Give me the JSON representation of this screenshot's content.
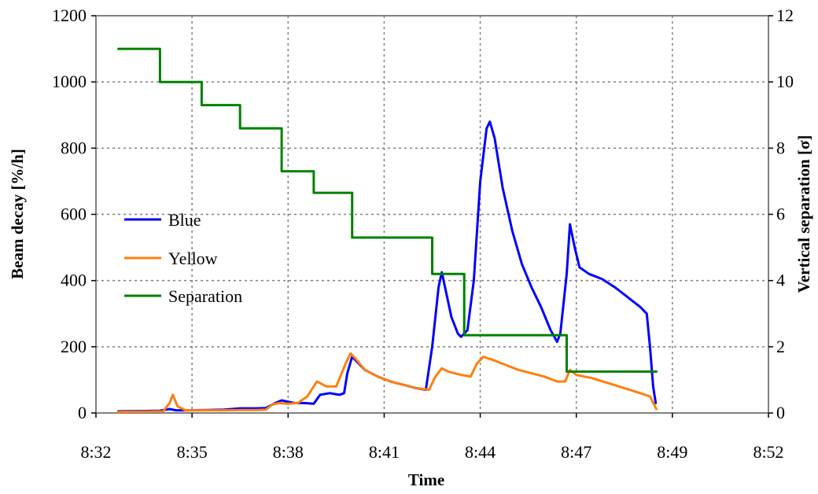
{
  "chart_data": {
    "type": "line",
    "title": "",
    "xlabel": "Time",
    "ylabel_left": "Beam decay [%/h]",
    "ylabel_right": "Vertical separation [σ]",
    "x_ticks": [
      "8:32",
      "8:35",
      "8:38",
      "8:41",
      "8:44",
      "8:47",
      "8:49",
      "8:52"
    ],
    "y_left_ticks": [
      "0",
      "200",
      "400",
      "600",
      "800",
      "1000",
      "1200"
    ],
    "y_right_ticks": [
      "0",
      "2",
      "4",
      "6",
      "8",
      "10",
      "12"
    ],
    "ylim_left": [
      0,
      1200
    ],
    "ylim_right": [
      0,
      12
    ],
    "grid": true,
    "grid_style": "dotted",
    "legend_position": "center-left",
    "series": [
      {
        "name": "Blue",
        "color": "#0000ff",
        "axis": "left",
        "points": [
          [
            0.7,
            5
          ],
          [
            1.5,
            6
          ],
          [
            2.0,
            7
          ],
          [
            2.3,
            12
          ],
          [
            2.5,
            8
          ],
          [
            3.0,
            8
          ],
          [
            3.5,
            9
          ],
          [
            4.0,
            10
          ],
          [
            4.5,
            14
          ],
          [
            5.0,
            14
          ],
          [
            5.3,
            15
          ],
          [
            5.6,
            30
          ],
          [
            5.8,
            38
          ],
          [
            6.2,
            30
          ],
          [
            6.5,
            30
          ],
          [
            6.8,
            28
          ],
          [
            7.0,
            55
          ],
          [
            7.3,
            60
          ],
          [
            7.6,
            55
          ],
          [
            7.75,
            60
          ],
          [
            7.85,
            120
          ],
          [
            8.0,
            170
          ],
          [
            8.4,
            130
          ],
          [
            8.8,
            110
          ],
          [
            9.2,
            95
          ],
          [
            9.6,
            85
          ],
          [
            10.0,
            75
          ],
          [
            10.3,
            70
          ],
          [
            10.5,
            200
          ],
          [
            10.7,
            380
          ],
          [
            10.8,
            425
          ],
          [
            10.9,
            380
          ],
          [
            11.1,
            290
          ],
          [
            11.3,
            240
          ],
          [
            11.4,
            230
          ],
          [
            11.6,
            250
          ],
          [
            11.8,
            400
          ],
          [
            12.0,
            700
          ],
          [
            12.2,
            860
          ],
          [
            12.3,
            880
          ],
          [
            12.45,
            830
          ],
          [
            12.7,
            680
          ],
          [
            13.0,
            550
          ],
          [
            13.3,
            450
          ],
          [
            13.6,
            380
          ],
          [
            13.9,
            320
          ],
          [
            14.2,
            250
          ],
          [
            14.4,
            215
          ],
          [
            14.5,
            240
          ],
          [
            14.7,
            420
          ],
          [
            14.8,
            570
          ],
          [
            14.95,
            500
          ],
          [
            15.1,
            440
          ],
          [
            15.4,
            420
          ],
          [
            15.8,
            405
          ],
          [
            16.2,
            380
          ],
          [
            16.6,
            350
          ],
          [
            17.0,
            320
          ],
          [
            17.2,
            300
          ],
          [
            17.3,
            200
          ],
          [
            17.4,
            80
          ],
          [
            17.48,
            30
          ]
        ]
      },
      {
        "name": "Yellow",
        "color": "#ff7f0e",
        "axis": "left",
        "points": [
          [
            0.7,
            3
          ],
          [
            1.5,
            4
          ],
          [
            2.1,
            5
          ],
          [
            2.3,
            30
          ],
          [
            2.4,
            55
          ],
          [
            2.55,
            20
          ],
          [
            2.8,
            8
          ],
          [
            3.5,
            8
          ],
          [
            4.0,
            8
          ],
          [
            4.5,
            9
          ],
          [
            5.0,
            9
          ],
          [
            5.3,
            10
          ],
          [
            5.5,
            25
          ],
          [
            5.7,
            30
          ],
          [
            6.0,
            28
          ],
          [
            6.3,
            30
          ],
          [
            6.6,
            50
          ],
          [
            6.9,
            95
          ],
          [
            7.2,
            80
          ],
          [
            7.5,
            80
          ],
          [
            7.8,
            150
          ],
          [
            7.95,
            180
          ],
          [
            8.1,
            165
          ],
          [
            8.4,
            130
          ],
          [
            8.8,
            110
          ],
          [
            9.2,
            95
          ],
          [
            9.6,
            85
          ],
          [
            10.0,
            75
          ],
          [
            10.4,
            70
          ],
          [
            10.6,
            110
          ],
          [
            10.8,
            135
          ],
          [
            11.0,
            125
          ],
          [
            11.4,
            115
          ],
          [
            11.7,
            110
          ],
          [
            11.9,
            150
          ],
          [
            12.1,
            170
          ],
          [
            12.4,
            160
          ],
          [
            12.8,
            145
          ],
          [
            13.2,
            130
          ],
          [
            13.6,
            120
          ],
          [
            14.0,
            110
          ],
          [
            14.4,
            95
          ],
          [
            14.65,
            95
          ],
          [
            14.8,
            130
          ],
          [
            15.0,
            115
          ],
          [
            15.5,
            105
          ],
          [
            16.0,
            90
          ],
          [
            16.5,
            75
          ],
          [
            17.0,
            60
          ],
          [
            17.3,
            50
          ],
          [
            17.5,
            12
          ]
        ]
      },
      {
        "name": "Separation",
        "color": "#008000",
        "axis": "right",
        "type": "step",
        "points": [
          [
            0.7,
            11.0
          ],
          [
            2.0,
            11.0
          ],
          [
            2.0,
            10.0
          ],
          [
            3.3,
            10.0
          ],
          [
            3.3,
            9.3
          ],
          [
            4.5,
            9.3
          ],
          [
            4.5,
            8.6
          ],
          [
            5.8,
            8.6
          ],
          [
            5.8,
            7.3
          ],
          [
            6.8,
            7.3
          ],
          [
            6.8,
            6.65
          ],
          [
            8.0,
            6.65
          ],
          [
            8.0,
            5.3
          ],
          [
            10.5,
            5.3
          ],
          [
            10.5,
            4.2
          ],
          [
            11.5,
            4.2
          ],
          [
            11.5,
            2.35
          ],
          [
            14.7,
            2.35
          ],
          [
            14.7,
            1.25
          ],
          [
            17.5,
            1.25
          ]
        ]
      }
    ]
  }
}
